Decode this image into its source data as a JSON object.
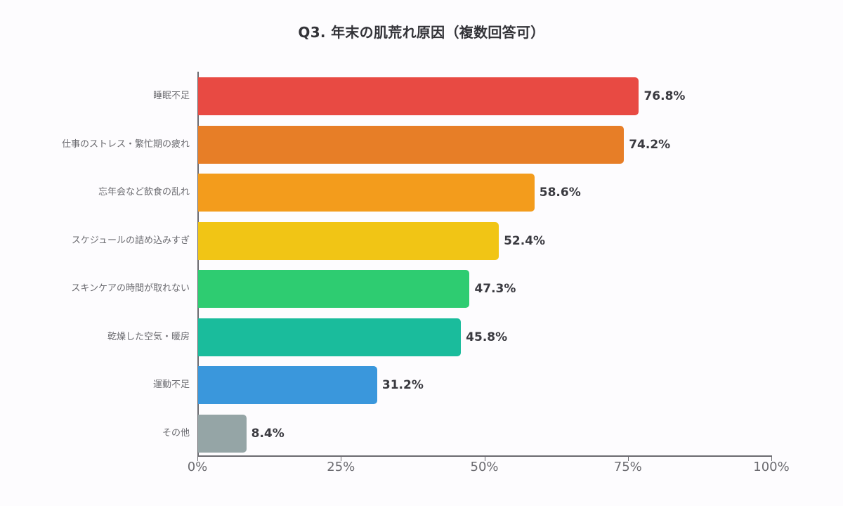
{
  "title": "Q3. 年末の肌荒れ原因（複数回答可）",
  "chart_data": {
    "type": "bar",
    "orientation": "horizontal",
    "title": "Q3. 年末の肌荒れ原因（複数回答可）",
    "xlabel": "",
    "ylabel": "",
    "xlim": [
      0,
      100
    ],
    "x_ticks": [
      "0%",
      "25%",
      "50%",
      "75%",
      "100%"
    ],
    "grid": false,
    "legend": null,
    "categories": [
      "睡眠不足",
      "仕事のストレス・繁忙期の疲れ",
      "忘年会など飲食の乱れ",
      "スケジュールの詰め込みすぎ",
      "スキンケアの時間が取れない",
      "乾燥した空気・暖房",
      "運動不足",
      "その他"
    ],
    "values": [
      76.8,
      74.2,
      58.6,
      52.4,
      47.3,
      45.8,
      31.2,
      8.4
    ],
    "value_labels": [
      "76.8%",
      "74.2%",
      "58.6%",
      "52.4%",
      "47.3%",
      "45.8%",
      "31.2%",
      "8.4%"
    ],
    "colors": [
      "#e84a43",
      "#e77e27",
      "#f39c1c",
      "#f1c515",
      "#2ecc71",
      "#1abc9c",
      "#3a97dc",
      "#95a5a6"
    ]
  }
}
